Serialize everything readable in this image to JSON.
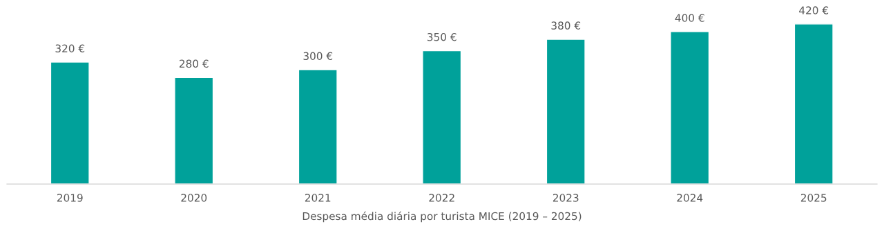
{
  "chart_data": {
    "type": "bar",
    "xlabel": "Despesa média diária por turista MICE (2019 – 2025)",
    "categories": [
      "2019",
      "2020",
      "2021",
      "2022",
      "2023",
      "2024",
      "2025"
    ],
    "values": [
      320,
      280,
      300,
      350,
      380,
      400,
      420
    ],
    "value_labels": [
      "320 €",
      "280 €",
      "300 €",
      "350 €",
      "380 €",
      "400 €",
      "420 €"
    ],
    "color": "#00a19a",
    "grid": false,
    "legend": false
  }
}
